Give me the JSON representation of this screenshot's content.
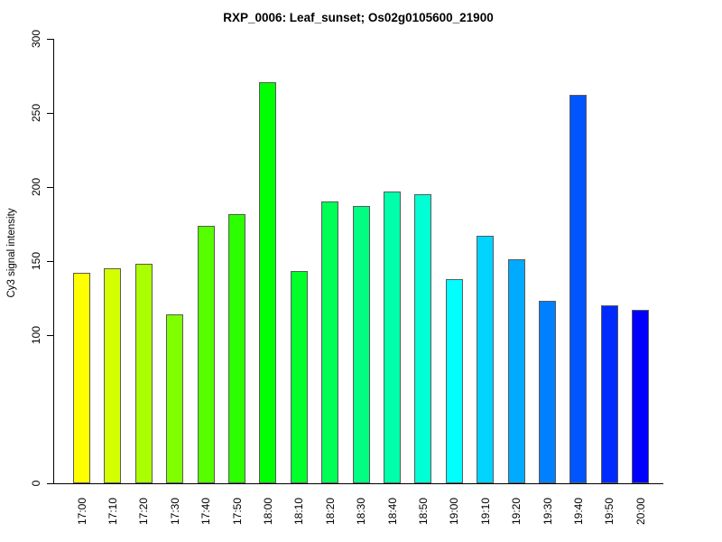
{
  "chart_data": {
    "type": "bar",
    "title": "RXP_0006: Leaf_sunset; Os02g0105600_21900",
    "ylabel": "Cy3 signal intensity",
    "xlabel": "",
    "categories": [
      "17:00",
      "17:10",
      "17:20",
      "17:30",
      "17:40",
      "17:50",
      "18:00",
      "18:10",
      "18:20",
      "18:30",
      "18:40",
      "18:50",
      "19:00",
      "19:10",
      "19:20",
      "19:30",
      "19:40",
      "19:50",
      "20:00"
    ],
    "values": [
      142,
      145,
      148,
      114,
      174,
      182,
      271,
      143,
      190,
      187,
      197,
      195,
      138,
      167,
      151,
      123,
      262,
      120,
      117
    ],
    "bar_colors": [
      "#FFFF00",
      "#D4FF00",
      "#AAFF00",
      "#80FF00",
      "#55FF00",
      "#2BFF00",
      "#00FF00",
      "#00FF2B",
      "#00FF55",
      "#00FF80",
      "#00FFAA",
      "#00FFD4",
      "#00FFFF",
      "#00D4FF",
      "#00AAFF",
      "#0080FF",
      "#0055FF",
      "#002BFF",
      "#0000FF"
    ],
    "bar_border_color": "#5a5a5a",
    "axis_color": "#000000",
    "text_color": "#000000",
    "background": "#ffffff",
    "yticks": [
      0,
      100,
      150,
      200,
      250,
      300
    ],
    "ylim": [
      0,
      300
    ],
    "grid": false,
    "legend_position": "none"
  }
}
